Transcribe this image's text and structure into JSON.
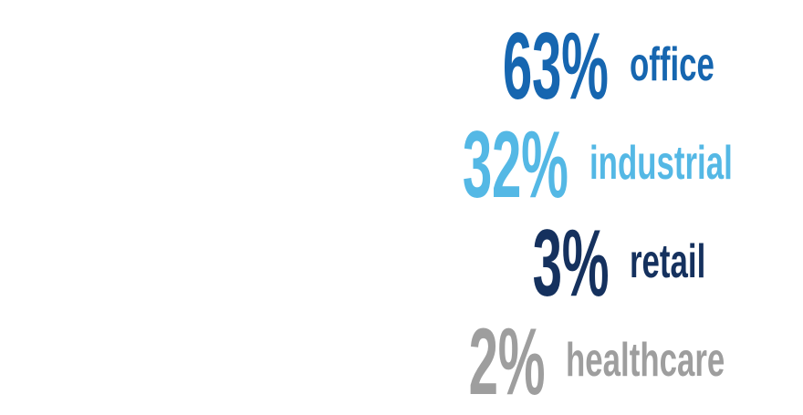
{
  "chart_data": {
    "type": "table",
    "title": "",
    "categories": [
      "office",
      "industrial",
      "retail",
      "healthcare"
    ],
    "values": [
      63,
      32,
      3,
      2
    ],
    "unit": "percent",
    "legend_position": "none",
    "background_color": "#FFFFFF",
    "rows": [
      {
        "value_text": "63%",
        "label": "office",
        "color": "#1666B0"
      },
      {
        "value_text": "32%",
        "label": "industrial",
        "color": "#54B8E5"
      },
      {
        "value_text": "3%",
        "label": "retail",
        "color": "#15315E"
      },
      {
        "value_text": "2%",
        "label": "healthcare",
        "color": "#9E9E9E"
      }
    ]
  }
}
